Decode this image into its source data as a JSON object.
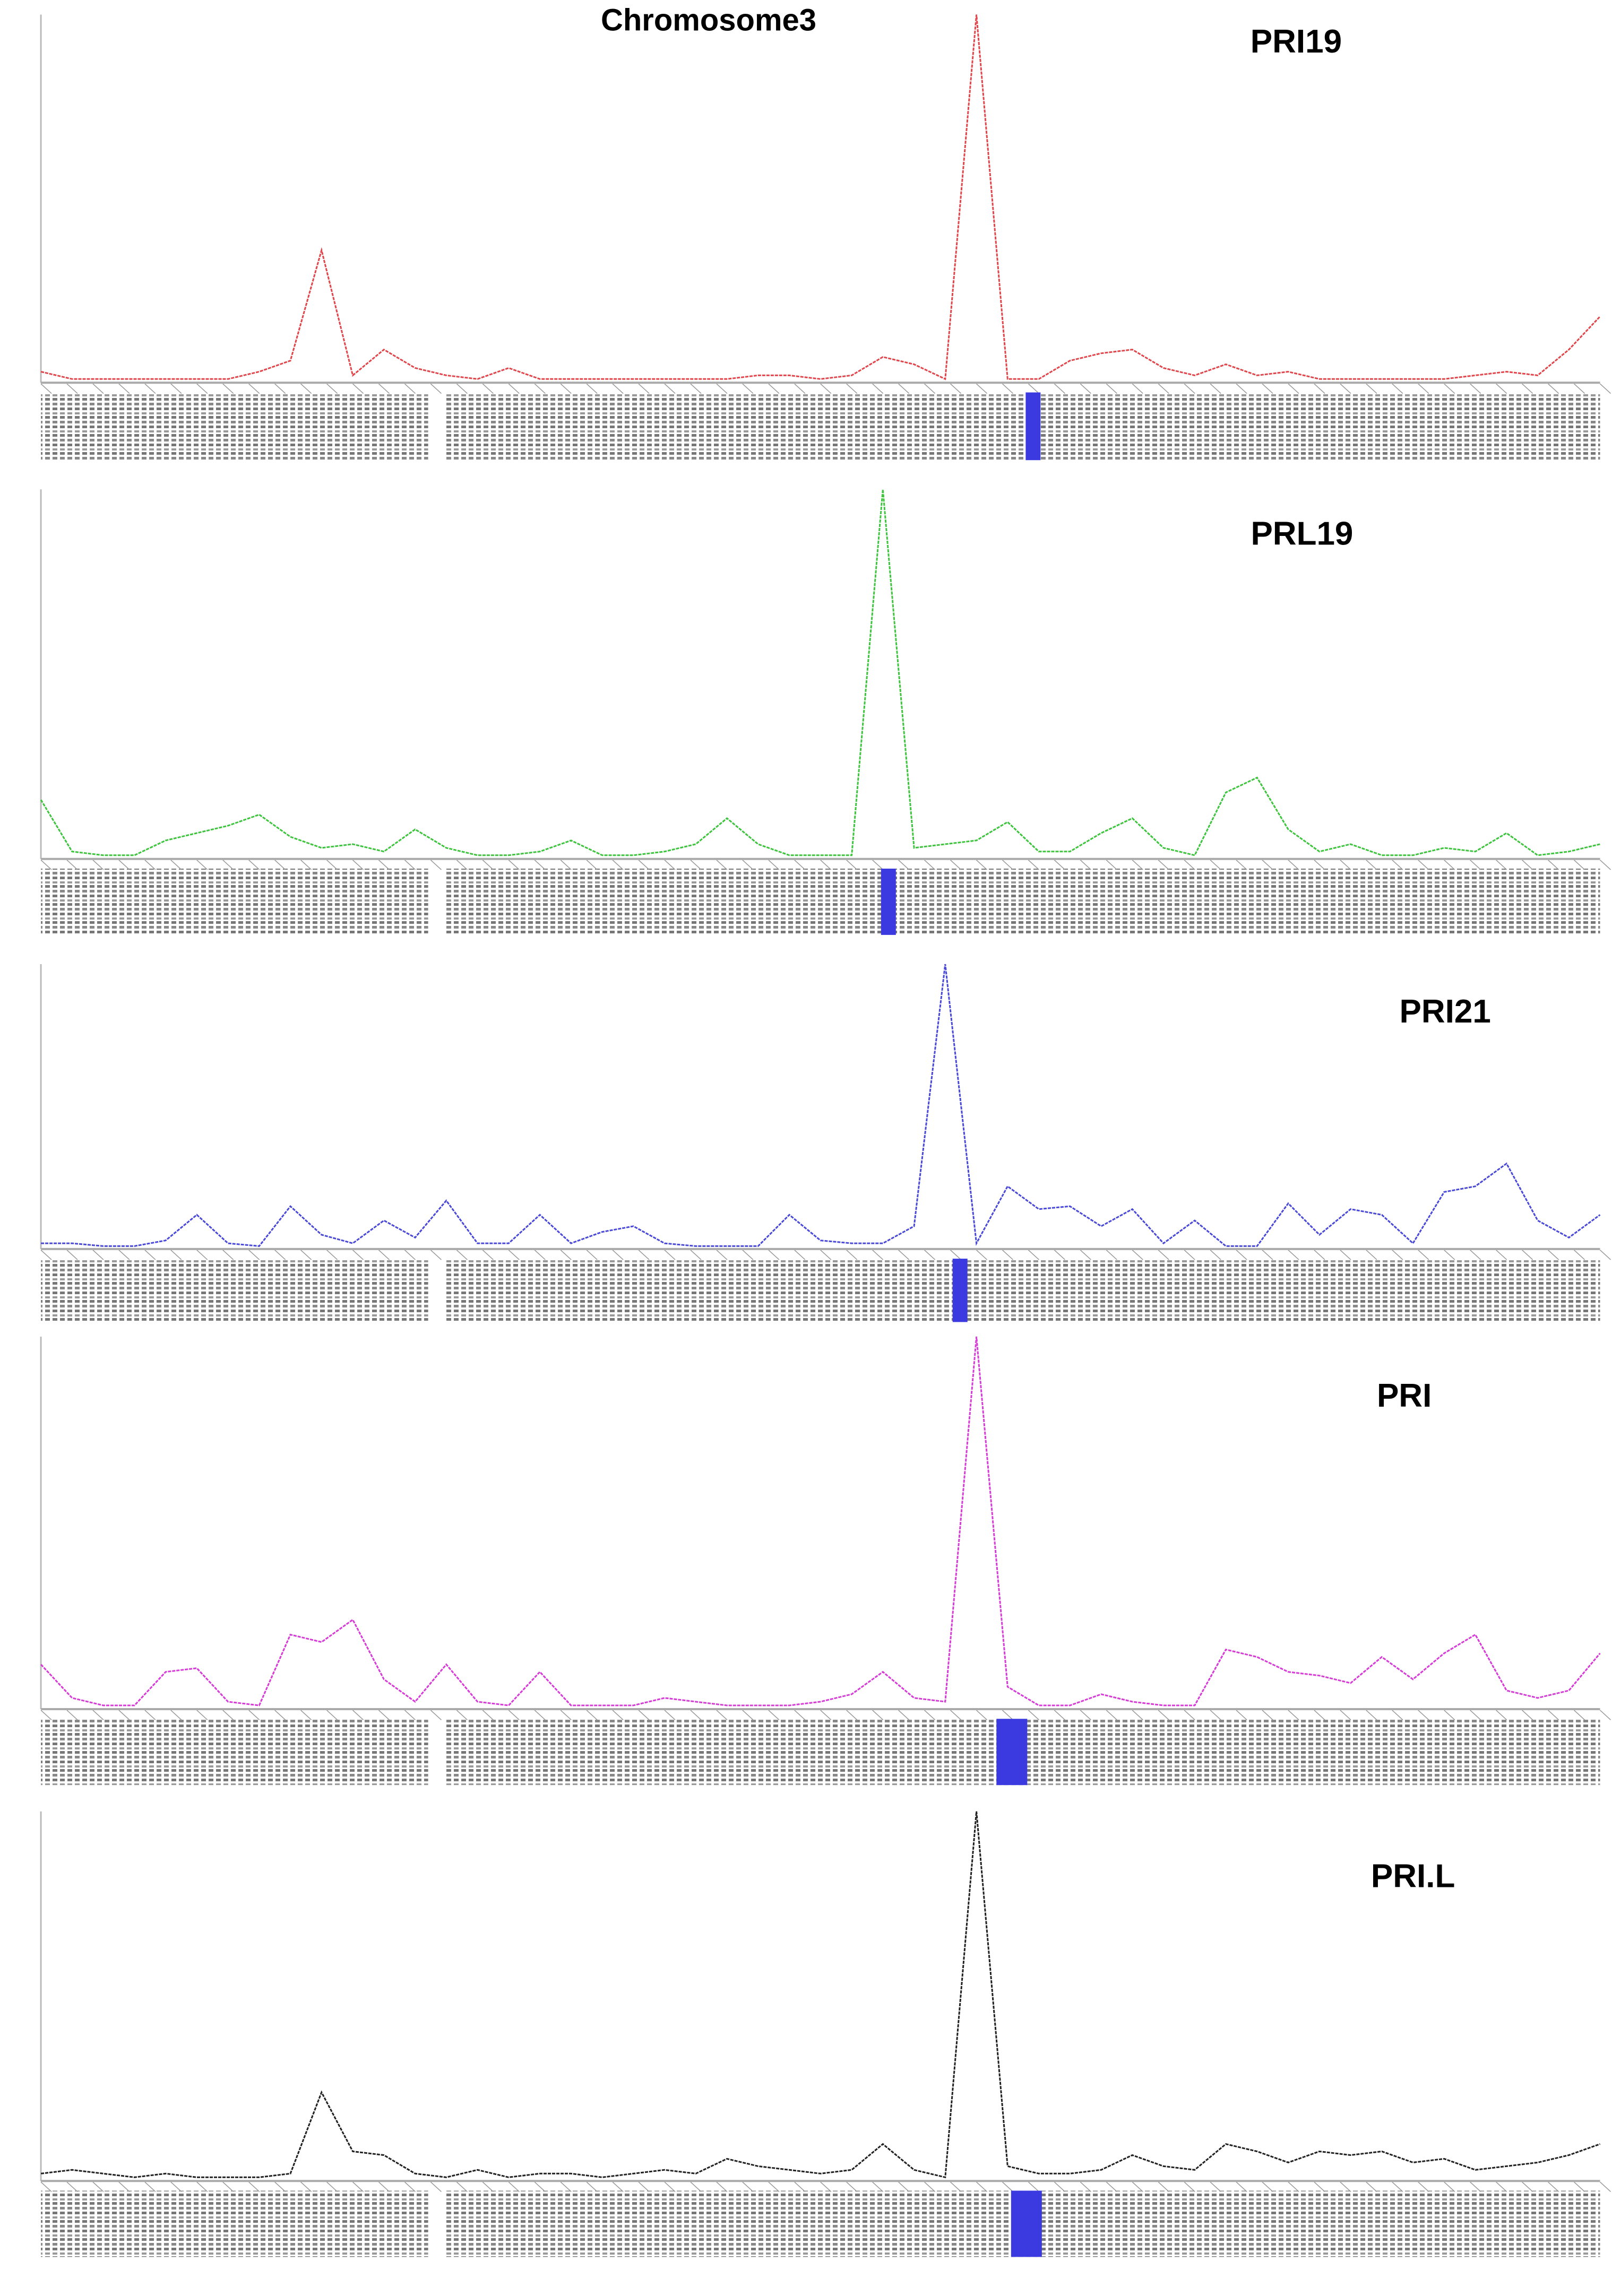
{
  "title": "Chromosome3",
  "chart_data": [
    {
      "type": "line",
      "title": "PRI19",
      "color": "#e0474c",
      "xlim": [
        0,
        100
      ],
      "ylim": [
        0,
        100
      ],
      "x": [
        0,
        2,
        4,
        6,
        8,
        10,
        12,
        14,
        16,
        18,
        20,
        22,
        24,
        26,
        28,
        30,
        32,
        34,
        36,
        38,
        40,
        42,
        44,
        46,
        48,
        50,
        52,
        54,
        56,
        58,
        60,
        62,
        64,
        66,
        68,
        70,
        72,
        74,
        76,
        78,
        80,
        82,
        84,
        86,
        88,
        90,
        92,
        94,
        96,
        98,
        100
      ],
      "values": [
        3,
        1,
        1,
        1,
        1,
        1,
        1,
        3,
        6,
        36,
        2,
        9,
        4,
        2,
        1,
        4,
        1,
        1,
        1,
        1,
        1,
        1,
        1,
        2,
        2,
        1,
        2,
        7,
        5,
        1,
        100,
        1,
        1,
        6,
        8,
        9,
        4,
        2,
        5,
        2,
        3,
        1,
        1,
        1,
        1,
        1,
        2,
        3,
        2,
        9,
        18
      ]
    },
    {
      "type": "line",
      "title": "PRL19",
      "color": "#3ec43e",
      "xlim": [
        0,
        100
      ],
      "ylim": [
        0,
        100
      ],
      "x": [
        0,
        2,
        4,
        6,
        8,
        10,
        12,
        14,
        16,
        18,
        20,
        22,
        24,
        26,
        28,
        30,
        32,
        34,
        36,
        38,
        40,
        42,
        44,
        46,
        48,
        50,
        52,
        54,
        56,
        58,
        60,
        62,
        64,
        66,
        68,
        70,
        72,
        74,
        76,
        78,
        80,
        82,
        84,
        86,
        88,
        90,
        92,
        94,
        96,
        98,
        100
      ],
      "values": [
        16,
        2,
        1,
        1,
        5,
        7,
        9,
        12,
        6,
        3,
        4,
        2,
        8,
        3,
        1,
        1,
        2,
        5,
        1,
        1,
        2,
        4,
        11,
        4,
        1,
        1,
        1,
        100,
        3,
        4,
        5,
        10,
        2,
        2,
        7,
        11,
        3,
        1,
        18,
        22,
        8,
        2,
        4,
        1,
        1,
        3,
        2,
        7,
        1,
        2,
        4
      ]
    },
    {
      "type": "line",
      "title": "PRI21",
      "color": "#4a4ad6",
      "xlim": [
        0,
        100
      ],
      "ylim": [
        0,
        100
      ],
      "x": [
        0,
        2,
        4,
        6,
        8,
        10,
        12,
        14,
        16,
        18,
        20,
        22,
        24,
        26,
        28,
        30,
        32,
        34,
        36,
        38,
        40,
        42,
        44,
        46,
        48,
        50,
        52,
        54,
        56,
        58,
        60,
        62,
        64,
        66,
        68,
        70,
        72,
        74,
        76,
        78,
        80,
        82,
        84,
        86,
        88,
        90,
        92,
        94,
        96,
        98,
        100
      ],
      "values": [
        2,
        2,
        1,
        1,
        3,
        12,
        2,
        1,
        15,
        5,
        2,
        10,
        4,
        17,
        2,
        2,
        12,
        2,
        6,
        8,
        2,
        1,
        1,
        1,
        12,
        3,
        2,
        2,
        8,
        100,
        2,
        22,
        14,
        15,
        8,
        14,
        2,
        10,
        1,
        1,
        16,
        5,
        14,
        12,
        2,
        20,
        22,
        30,
        10,
        4,
        12
      ]
    },
    {
      "type": "line",
      "title": "PRI",
      "color": "#d63cd6",
      "xlim": [
        0,
        100
      ],
      "ylim": [
        0,
        100
      ],
      "x": [
        0,
        2,
        4,
        6,
        8,
        10,
        12,
        14,
        16,
        18,
        20,
        22,
        24,
        26,
        28,
        30,
        32,
        34,
        36,
        38,
        40,
        42,
        44,
        46,
        48,
        50,
        52,
        54,
        56,
        58,
        60,
        62,
        64,
        66,
        68,
        70,
        72,
        74,
        76,
        78,
        80,
        82,
        84,
        86,
        88,
        90,
        92,
        94,
        96,
        98,
        100
      ],
      "values": [
        12,
        3,
        1,
        1,
        10,
        11,
        2,
        1,
        20,
        18,
        24,
        8,
        2,
        12,
        2,
        1,
        10,
        1,
        1,
        1,
        3,
        2,
        1,
        1,
        1,
        2,
        4,
        10,
        3,
        2,
        100,
        6,
        1,
        1,
        4,
        2,
        1,
        1,
        16,
        14,
        10,
        9,
        7,
        14,
        8,
        15,
        20,
        5,
        3,
        5,
        15
      ]
    },
    {
      "type": "line",
      "title": "PRI.L",
      "color": "#222222",
      "xlim": [
        0,
        100
      ],
      "ylim": [
        0,
        100
      ],
      "x": [
        0,
        2,
        4,
        6,
        8,
        10,
        12,
        14,
        16,
        18,
        20,
        22,
        24,
        26,
        28,
        30,
        32,
        34,
        36,
        38,
        40,
        42,
        44,
        46,
        48,
        50,
        52,
        54,
        56,
        58,
        60,
        62,
        64,
        66,
        68,
        70,
        72,
        74,
        76,
        78,
        80,
        82,
        84,
        86,
        88,
        90,
        92,
        94,
        96,
        98,
        100
      ],
      "values": [
        2,
        3,
        2,
        1,
        2,
        1,
        1,
        1,
        2,
        24,
        8,
        7,
        2,
        1,
        3,
        1,
        2,
        2,
        1,
        2,
        3,
        2,
        6,
        4,
        3,
        2,
        3,
        10,
        3,
        1,
        100,
        4,
        2,
        2,
        3,
        7,
        4,
        3,
        10,
        8,
        5,
        8,
        7,
        8,
        5,
        6,
        3,
        4,
        5,
        7,
        10
      ]
    }
  ]
}
